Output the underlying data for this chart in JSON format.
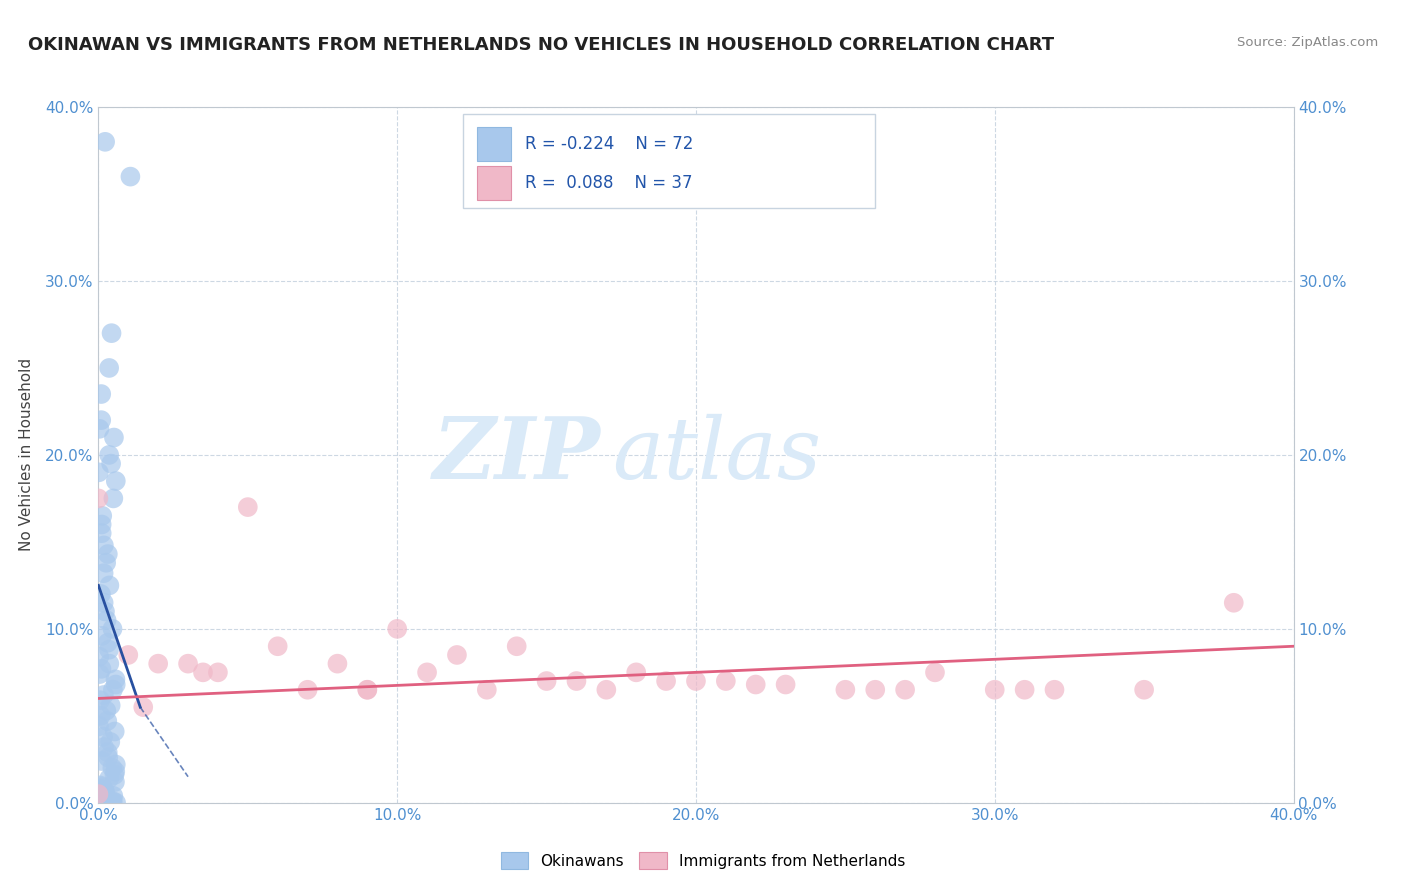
{
  "title": "OKINAWAN VS IMMIGRANTS FROM NETHERLANDS NO VEHICLES IN HOUSEHOLD CORRELATION CHART",
  "source": "Source: ZipAtlas.com",
  "xlim": [
    0.0,
    0.4
  ],
  "ylim": [
    0.0,
    0.4
  ],
  "legend1_label": "Okinawans",
  "legend2_label": "Immigrants from Netherlands",
  "r1": -0.224,
  "n1": 72,
  "r2": 0.088,
  "n2": 37,
  "color1": "#a8c8ec",
  "color2": "#f0b8c8",
  "trendline1_color": "#2850a0",
  "trendline2_color": "#e06080",
  "watermark_zip": "ZIP",
  "watermark_atlas": "atlas",
  "watermark_color": "#daeaf8",
  "grid_color": "#c8d4e0",
  "background_color": "#ffffff",
  "blue_x": [
    0.0,
    0.005,
    0.0,
    0.0,
    0.0,
    0.0,
    0.0,
    0.0,
    0.0,
    0.0,
    0.0,
    0.0,
    0.0,
    0.0,
    0.0,
    0.0,
    0.0,
    0.0,
    0.0,
    0.0,
    0.0,
    0.0,
    0.0,
    0.0,
    0.0,
    0.0,
    0.0,
    0.0,
    0.0,
    0.0,
    0.0,
    0.0,
    0.0,
    0.0,
    0.0,
    0.0,
    0.0,
    0.0,
    0.0,
    0.0,
    0.0,
    0.0,
    0.0,
    0.0,
    0.0,
    0.0,
    0.0,
    0.0,
    0.0,
    0.0,
    0.0,
    0.0,
    0.0,
    0.0,
    0.0,
    0.0,
    0.0,
    0.0,
    0.0,
    0.0,
    0.0,
    0.0,
    0.0,
    0.0,
    0.0,
    0.0,
    0.0,
    0.0,
    0.0,
    0.0,
    0.0,
    0.0
  ],
  "blue_y": [
    0.38,
    0.36,
    0.27,
    0.25,
    0.235,
    0.22,
    0.215,
    0.21,
    0.2,
    0.195,
    0.19,
    0.185,
    0.175,
    0.165,
    0.16,
    0.155,
    0.148,
    0.143,
    0.138,
    0.132,
    0.125,
    0.12,
    0.115,
    0.11,
    0.105,
    0.1,
    0.096,
    0.092,
    0.088,
    0.084,
    0.08,
    0.077,
    0.074,
    0.071,
    0.068,
    0.065,
    0.062,
    0.059,
    0.056,
    0.053,
    0.05,
    0.047,
    0.044,
    0.041,
    0.038,
    0.035,
    0.032,
    0.029,
    0.026,
    0.024,
    0.022,
    0.02,
    0.018,
    0.016,
    0.014,
    0.012,
    0.01,
    0.009,
    0.008,
    0.007,
    0.006,
    0.005,
    0.004,
    0.003,
    0.003,
    0.002,
    0.002,
    0.001,
    0.001,
    0.0,
    0.0,
    0.0
  ],
  "pink_x": [
    0.0,
    0.0,
    0.01,
    0.02,
    0.03,
    0.04,
    0.06,
    0.07,
    0.08,
    0.09,
    0.1,
    0.11,
    0.12,
    0.13,
    0.14,
    0.15,
    0.16,
    0.17,
    0.18,
    0.19,
    0.2,
    0.21,
    0.22,
    0.23,
    0.25,
    0.26,
    0.27,
    0.28,
    0.3,
    0.31,
    0.32,
    0.35,
    0.38,
    0.05,
    0.015,
    0.035,
    0.09
  ],
  "pink_y": [
    0.175,
    0.005,
    0.085,
    0.08,
    0.08,
    0.075,
    0.09,
    0.065,
    0.08,
    0.065,
    0.1,
    0.075,
    0.085,
    0.065,
    0.09,
    0.07,
    0.07,
    0.065,
    0.075,
    0.07,
    0.07,
    0.07,
    0.068,
    0.068,
    0.065,
    0.065,
    0.065,
    0.075,
    0.065,
    0.065,
    0.065,
    0.065,
    0.115,
    0.17,
    0.055,
    0.075,
    0.065
  ],
  "blue_trend_x": [
    0.0,
    0.014
  ],
  "blue_trend_y": [
    0.125,
    0.055
  ],
  "pink_trend_x": [
    0.0,
    0.4
  ],
  "pink_trend_y": [
    0.06,
    0.09
  ]
}
